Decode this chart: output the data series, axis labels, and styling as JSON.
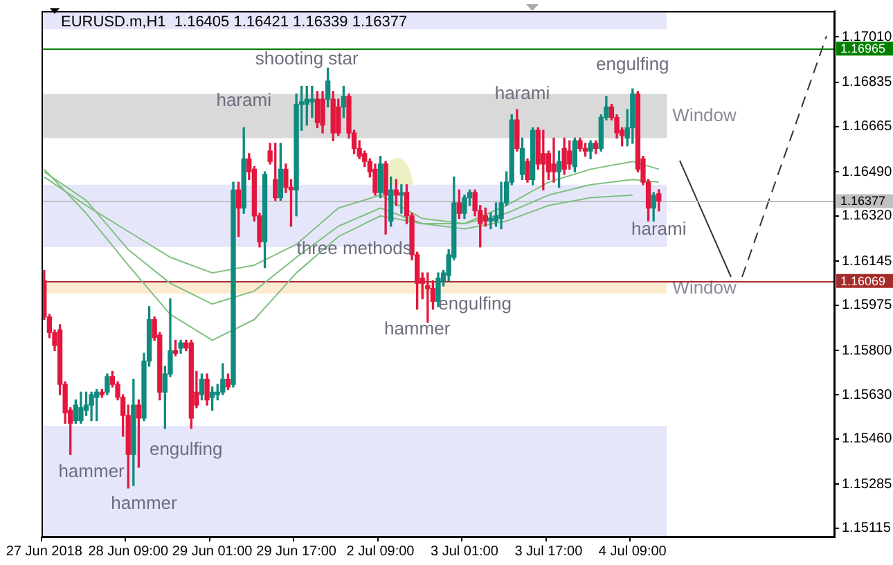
{
  "chart_data": {
    "type": "candlestick",
    "title": "EURUSD.m,H1  1.16405 1.16421 1.16339 1.16377",
    "categories": [
      "27 Jun 2018",
      null,
      null,
      null,
      null,
      null,
      null,
      null,
      null,
      null,
      null,
      null,
      null,
      null,
      null,
      null,
      "28 Jun 09:00",
      null,
      null,
      null,
      null,
      null,
      null,
      null,
      null,
      null,
      null,
      null,
      null,
      null,
      null,
      null,
      "29 Jun 01:00",
      null,
      null,
      null,
      null,
      null,
      null,
      null,
      null,
      null,
      null,
      null,
      null,
      null,
      null,
      null,
      "29 Jun 17:00",
      null,
      null,
      null,
      null,
      null,
      null,
      null,
      null,
      null,
      null,
      null,
      null,
      null,
      null,
      null,
      "2 Jul 09:00",
      null,
      null,
      null,
      null,
      null,
      null,
      null,
      null,
      null,
      null,
      null,
      null,
      null,
      null,
      null,
      "3 Jul 01:00",
      null,
      null,
      null,
      null,
      null,
      null,
      null,
      null,
      null,
      null,
      null,
      null,
      null,
      null,
      null,
      "3 Jul 17:00",
      null,
      null,
      null,
      null,
      null,
      null,
      null,
      null,
      null,
      null,
      null,
      null,
      null,
      null,
      null,
      "4 Jul 09:00",
      null,
      null,
      null,
      null,
      null,
      null,
      null,
      null,
      null,
      null,
      null,
      null,
      null,
      null,
      null,
      null,
      null,
      null,
      null,
      null,
      null,
      null,
      null,
      null,
      null,
      null,
      null,
      null,
      null,
      null,
      null,
      null,
      null,
      null,
      null,
      null,
      null,
      null
    ],
    "ohlc": [
      [
        1.1607,
        1.1611,
        1.1592,
        1.1593
      ],
      [
        1.1593,
        1.1594,
        1.1585,
        1.1587
      ],
      [
        1.1587,
        1.1588,
        1.158,
        1.1582
      ],
      [
        1.1588,
        1.159,
        1.1563,
        1.1567
      ],
      [
        1.1567,
        1.1568,
        1.1552,
        1.1556
      ],
      [
        1.1557,
        1.1558,
        1.154,
        1.1552
      ],
      [
        1.1553,
        1.1561,
        1.1552,
        1.1559
      ],
      [
        1.1553,
        1.1564,
        1.1552,
        1.1558
      ],
      [
        1.1557,
        1.1564,
        1.1555,
        1.1559
      ],
      [
        1.1559,
        1.1564,
        1.1553,
        1.1563
      ],
      [
        1.1562,
        1.1565,
        1.1553,
        1.1564
      ],
      [
        1.1564,
        1.1565,
        1.1562,
        1.1563
      ],
      [
        1.1564,
        1.1571,
        1.1563,
        1.157
      ],
      [
        1.157,
        1.1572,
        1.1566,
        1.1567
      ],
      [
        1.1567,
        1.1568,
        1.1561,
        1.1562
      ],
      [
        1.1562,
        1.1563,
        1.1547,
        1.1555
      ],
      [
        1.1555,
        1.1559,
        1.1527,
        1.154
      ],
      [
        1.154,
        1.1569,
        1.1528,
        1.1559
      ],
      [
        1.1559,
        1.1561,
        1.1535,
        1.1554
      ],
      [
        1.1554,
        1.1579,
        1.1553,
        1.1576
      ],
      [
        1.1576,
        1.1597,
        1.1574,
        1.1592
      ],
      [
        1.1592,
        1.1593,
        1.1584,
        1.1585
      ],
      [
        1.1586,
        1.1587,
        1.1561,
        1.1564
      ],
      [
        1.1564,
        1.1574,
        1.155,
        1.1571
      ],
      [
        1.1571,
        1.16,
        1.157,
        1.158
      ],
      [
        1.158,
        1.1584,
        1.1578,
        1.1579
      ],
      [
        1.1581,
        1.1584,
        1.1579,
        1.1583
      ],
      [
        1.1583,
        1.1584,
        1.158,
        1.1581
      ],
      [
        1.1583,
        1.1584,
        1.155,
        1.1554
      ],
      [
        1.1564,
        1.1572,
        1.1558,
        1.1559
      ],
      [
        1.1563,
        1.1571,
        1.1561,
        1.1569
      ],
      [
        1.1569,
        1.1571,
        1.1559,
        1.1561
      ],
      [
        1.1562,
        1.1566,
        1.1557,
        1.1564
      ],
      [
        1.1563,
        1.1567,
        1.1561,
        1.1564
      ],
      [
        1.1564,
        1.1575,
        1.1563,
        1.1569
      ],
      [
        1.1569,
        1.1571,
        1.1565,
        1.1566
      ],
      [
        1.1567,
        1.1645,
        1.1566,
        1.1642
      ],
      [
        1.1642,
        1.1645,
        1.1624,
        1.1635
      ],
      [
        1.1635,
        1.1666,
        1.1633,
        1.1654
      ],
      [
        1.1654,
        1.1656,
        1.1646,
        1.1649
      ],
      [
        1.165,
        1.1651,
        1.163,
        1.1632
      ],
      [
        1.1632,
        1.1633,
        1.162,
        1.1622
      ],
      [
        1.1622,
        1.1649,
        1.1612,
        1.1648
      ],
      [
        1.1657,
        1.166,
        1.1652,
        1.1653
      ],
      [
        1.1646,
        1.166,
        1.1638,
        1.1639
      ],
      [
        1.1639,
        1.166,
        1.1638,
        1.165
      ],
      [
        1.165,
        1.1652,
        1.1641,
        1.1643
      ],
      [
        1.1643,
        1.1646,
        1.1628,
        1.1642
      ],
      [
        1.1642,
        1.1679,
        1.1632,
        1.1675
      ],
      [
        1.1675,
        1.1682,
        1.1665,
        1.1676
      ],
      [
        1.1675,
        1.1682,
        1.1667,
        1.1677
      ],
      [
        1.1676,
        1.1682,
        1.167,
        1.1677
      ],
      [
        1.1677,
        1.168,
        1.1666,
        1.1668
      ],
      [
        1.1677,
        1.168,
        1.1664,
        1.1667
      ],
      [
        1.1677,
        1.1689,
        1.1674,
        1.1684
      ],
      [
        1.1677,
        1.168,
        1.1661,
        1.1664
      ],
      [
        1.1674,
        1.1677,
        1.1663,
        1.1664
      ],
      [
        1.1674,
        1.1682,
        1.167,
        1.1678
      ],
      [
        1.1678,
        1.1679,
        1.1662,
        1.1664
      ],
      [
        1.1664,
        1.1665,
        1.1656,
        1.1658
      ],
      [
        1.1658,
        1.1661,
        1.1654,
        1.1655
      ],
      [
        1.1656,
        1.1657,
        1.1651,
        1.1653
      ],
      [
        1.1653,
        1.1654,
        1.1647,
        1.1649
      ],
      [
        1.165,
        1.1652,
        1.164,
        1.1641
      ],
      [
        1.1641,
        1.1655,
        1.1639,
        1.1652
      ],
      [
        1.1652,
        1.1653,
        1.1625,
        1.164
      ],
      [
        1.163,
        1.1647,
        1.1628,
        1.1642
      ],
      [
        1.1642,
        1.1646,
        1.1636,
        1.164
      ],
      [
        1.164,
        1.1644,
        1.1633,
        1.1641
      ],
      [
        1.1641,
        1.1644,
        1.1629,
        1.1632
      ],
      [
        1.1632,
        1.1633,
        1.1615,
        1.1617
      ],
      [
        1.1617,
        1.1618,
        1.1596,
        1.1606
      ],
      [
        1.1608,
        1.161,
        1.16,
        1.1606
      ],
      [
        1.1605,
        1.161,
        1.1591,
        1.1604
      ],
      [
        1.1604,
        1.1607,
        1.1596,
        1.1599
      ],
      [
        1.1599,
        1.161,
        1.1597,
        1.1608
      ],
      [
        1.1607,
        1.1611,
        1.1605,
        1.161
      ],
      [
        1.1609,
        1.1619,
        1.1607,
        1.1617
      ],
      [
        1.1616,
        1.1647,
        1.1615,
        1.1637
      ],
      [
        1.1637,
        1.1642,
        1.1631,
        1.1633
      ],
      [
        1.1633,
        1.164,
        1.1631,
        1.1639
      ],
      [
        1.1639,
        1.1642,
        1.1636,
        1.1641
      ],
      [
        1.1641,
        1.1642,
        1.1632,
        1.1634
      ],
      [
        1.1634,
        1.1636,
        1.162,
        1.1629
      ],
      [
        1.1632,
        1.1635,
        1.1628,
        1.163
      ],
      [
        1.163,
        1.1633,
        1.1627,
        1.1631
      ],
      [
        1.163,
        1.1637,
        1.1628,
        1.1632
      ],
      [
        1.1631,
        1.1645,
        1.1627,
        1.1637
      ],
      [
        1.1637,
        1.1649,
        1.1636,
        1.1645
      ],
      [
        1.1645,
        1.1671,
        1.1644,
        1.1669
      ],
      [
        1.1669,
        1.1673,
        1.1657,
        1.1658
      ],
      [
        1.1648,
        1.1662,
        1.1646,
        1.1658
      ],
      [
        1.1653,
        1.1654,
        1.1645,
        1.1646
      ],
      [
        1.1646,
        1.1666,
        1.1644,
        1.1665
      ],
      [
        1.1665,
        1.1666,
        1.165,
        1.1652
      ],
      [
        1.1656,
        1.1665,
        1.1642,
        1.1652
      ],
      [
        1.1656,
        1.1657,
        1.1646,
        1.1649
      ],
      [
        1.1652,
        1.1662,
        1.1645,
        1.1649
      ],
      [
        1.1649,
        1.1657,
        1.1643,
        1.1653
      ],
      [
        1.1658,
        1.1662,
        1.1648,
        1.165
      ],
      [
        1.1657,
        1.1661,
        1.165,
        1.1652
      ],
      [
        1.1651,
        1.1662,
        1.1649,
        1.1661
      ],
      [
        1.1661,
        1.1662,
        1.1657,
        1.1658
      ],
      [
        1.1658,
        1.166,
        1.1655,
        1.1657
      ],
      [
        1.1657,
        1.1661,
        1.1654,
        1.166
      ],
      [
        1.166,
        1.1661,
        1.1656,
        1.1658
      ],
      [
        1.1658,
        1.1671,
        1.1657,
        1.167
      ],
      [
        1.167,
        1.1678,
        1.1669,
        1.1674
      ],
      [
        1.1674,
        1.1675,
        1.1669,
        1.167
      ],
      [
        1.167,
        1.1671,
        1.1662,
        1.1664
      ],
      [
        1.1665,
        1.1666,
        1.1659,
        1.1663
      ],
      [
        1.1662,
        1.1673,
        1.1659,
        1.1666
      ],
      [
        1.1666,
        1.1681,
        1.166,
        1.1679
      ],
      [
        1.1679,
        1.168,
        1.1649,
        1.165
      ],
      [
        1.1654,
        1.1655,
        1.1644,
        1.1645
      ],
      [
        1.1645,
        1.1646,
        1.163,
        1.1635
      ],
      [
        1.1635,
        1.1641,
        1.163,
        1.164
      ],
      [
        1.16405,
        1.16421,
        1.16339,
        1.16377
      ],
      null,
      null,
      null,
      null,
      null,
      null,
      null,
      null,
      null,
      null,
      null,
      null,
      null,
      null,
      null,
      null,
      null,
      null,
      null,
      null,
      null,
      null,
      null,
      null,
      null,
      null,
      null,
      null,
      null,
      null,
      null,
      null,
      null
    ],
    "series": [
      {
        "type": "line",
        "color": "#80c080",
        "values": [
          1.165,
          null,
          null,
          null,
          null,
          null,
          null,
          null,
          1.1633,
          null,
          null,
          null,
          null,
          null,
          null,
          null,
          1.1613,
          null,
          null,
          null,
          null,
          null,
          null,
          null,
          1.1594,
          null,
          null,
          null,
          null,
          null,
          null,
          null,
          1.1584,
          null,
          null,
          null,
          null,
          null,
          null,
          null,
          1.1592,
          null,
          null,
          null,
          null,
          null,
          null,
          null,
          1.161,
          null,
          null,
          null,
          null,
          null,
          null,
          null,
          1.1624,
          null,
          null,
          null,
          null,
          null,
          null,
          null,
          1.1632,
          null,
          null,
          null,
          null,
          null,
          null,
          null,
          1.1629,
          null,
          null,
          null,
          null,
          null,
          null,
          null,
          1.1627,
          null,
          null,
          null,
          null,
          null,
          null,
          null,
          1.163,
          null,
          null,
          null,
          null,
          null,
          null,
          null,
          1.1636,
          null,
          null,
          null,
          null,
          null,
          null,
          null,
          1.1639,
          null,
          null,
          null,
          null,
          null,
          null,
          null,
          1.164,
          null,
          null,
          null,
          null,
          null,
          null,
          null,
          null,
          null,
          null,
          null,
          null,
          null,
          null,
          null,
          null,
          null,
          null,
          null,
          null,
          null,
          null,
          null,
          null,
          null,
          null,
          null,
          null,
          null,
          null,
          null,
          null,
          null,
          null,
          null,
          null,
          null,
          null
        ]
      },
      {
        "type": "line",
        "color": "#80c080",
        "values": [
          1.1649,
          null,
          null,
          null,
          null,
          null,
          null,
          null,
          1.1638,
          null,
          null,
          null,
          null,
          null,
          null,
          null,
          1.1619,
          null,
          null,
          null,
          null,
          null,
          null,
          null,
          1.1606,
          null,
          null,
          null,
          null,
          null,
          null,
          null,
          1.1598,
          null,
          null,
          null,
          null,
          null,
          null,
          null,
          1.1603,
          null,
          null,
          null,
          null,
          null,
          null,
          null,
          1.1616,
          null,
          null,
          null,
          null,
          null,
          null,
          null,
          1.1628,
          null,
          null,
          null,
          null,
          null,
          null,
          null,
          1.1635,
          null,
          null,
          null,
          null,
          null,
          null,
          null,
          1.1629,
          null,
          null,
          null,
          null,
          null,
          null,
          null,
          1.1629,
          null,
          null,
          null,
          null,
          null,
          null,
          null,
          1.1633,
          null,
          null,
          null,
          null,
          null,
          null,
          null,
          1.164,
          null,
          null,
          null,
          null,
          null,
          null,
          null,
          1.1644,
          null,
          null,
          null,
          null,
          null,
          null,
          null,
          1.1646,
          null,
          null,
          null,
          null,
          1.1645,
          null,
          null,
          null,
          null,
          null,
          null,
          null,
          null,
          null,
          null,
          null,
          null,
          null,
          null,
          null,
          null,
          null,
          null,
          null,
          null,
          null,
          null,
          null,
          null,
          null,
          null,
          null,
          null,
          null,
          null,
          null,
          null,
          null
        ]
      },
      {
        "type": "line",
        "color": "#80c080",
        "values": [
          1.1647,
          null,
          null,
          null,
          null,
          null,
          null,
          null,
          1.1636,
          null,
          null,
          null,
          null,
          null,
          null,
          null,
          1.1626,
          null,
          null,
          null,
          null,
          null,
          null,
          null,
          1.1616,
          null,
          null,
          null,
          null,
          null,
          null,
          null,
          1.161,
          null,
          null,
          null,
          null,
          null,
          null,
          null,
          1.1613,
          null,
          null,
          null,
          null,
          null,
          null,
          null,
          1.1621,
          null,
          null,
          null,
          null,
          null,
          null,
          null,
          1.1635,
          null,
          null,
          null,
          null,
          null,
          null,
          null,
          1.164,
          null,
          null,
          null,
          null,
          null,
          null,
          null,
          1.1631,
          null,
          null,
          null,
          null,
          null,
          null,
          null,
          1.1629,
          null,
          null,
          null,
          null,
          null,
          null,
          null,
          1.1636,
          null,
          null,
          null,
          null,
          null,
          null,
          null,
          1.1645,
          null,
          null,
          null,
          null,
          null,
          null,
          null,
          1.165,
          null,
          null,
          null,
          null,
          null,
          null,
          null,
          1.1653,
          null,
          null,
          null,
          null,
          1.165,
          null,
          null,
          null,
          null,
          null,
          null,
          null,
          null,
          null,
          null,
          null,
          null,
          null,
          null,
          null,
          null,
          null,
          null,
          null,
          null,
          null,
          null,
          null,
          null,
          null,
          null,
          null,
          null,
          null,
          null,
          null,
          null,
          null
        ]
      }
    ],
    "ylim": [
      1.1508,
      1.1711
    ],
    "yticks": [
      {
        "value": 1.1701,
        "label": "1.17010"
      },
      1.16835,
      1.16665,
      {
        "value": 1.1649,
        "label": "1.16490"
      },
      {
        "value": 1.1632,
        "label": "1.16320"
      },
      1.16145,
      1.15975,
      {
        "value": 1.158,
        "label": "1.15800"
      },
      {
        "value": 1.1563,
        "label": "1.15630"
      },
      {
        "value": 1.1546,
        "label": "1.15460"
      },
      1.15285,
      1.15115
    ],
    "bands": [
      {
        "axis": "y",
        "from": 1.1704,
        "to": 1.1711,
        "color": "#e6e6fa"
      },
      {
        "axis": "y",
        "from": 1.1662,
        "to": 1.1679,
        "label": "Window",
        "color": "#d9d9d9"
      },
      {
        "axis": "y",
        "from": 1.162,
        "to": 1.1644,
        "color": "#e6e6fa"
      },
      {
        "axis": "y",
        "from": 1.1602,
        "to": 1.1606,
        "label": "Window",
        "color": "#fdebd0"
      },
      {
        "axis": "y",
        "from": 1.1508,
        "to": 1.1551,
        "color": "#e6e6fa"
      }
    ],
    "ref_lines": [
      {
        "axis": "y",
        "value": 1.16965,
        "label": "1.16965",
        "color": "#008000"
      },
      {
        "axis": "y",
        "value": 1.16377,
        "label": "1.16377",
        "color": "#c0c0c0"
      },
      {
        "axis": "y",
        "value": 1.16069,
        "label": "1.16069",
        "color": "#a52a2a"
      }
    ],
    "annotations": [
      "shooting star",
      "harami",
      "harami",
      "engulfing",
      "three methods",
      "engulfing",
      "hammer",
      "harami",
      "engulfing",
      "hammer",
      "hammer"
    ]
  }
}
